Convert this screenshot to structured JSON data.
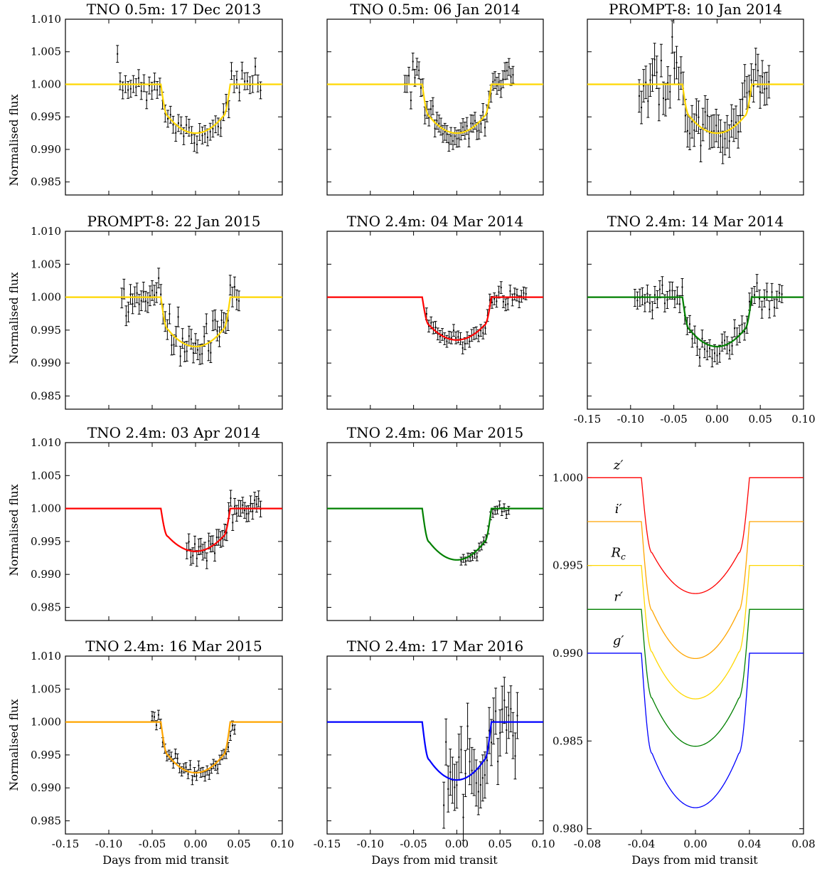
{
  "figure": {
    "ylabel": "Normalised flux",
    "xlabel": "Days from mid transit",
    "colors": {
      "yellow": "#ffd700",
      "red": "#ff0000",
      "green": "#008000",
      "orange": "#ffa500",
      "blue": "#0000ff",
      "errorbar": "#000000"
    }
  },
  "chart_data": [
    {
      "id": "p1",
      "type": "scatter",
      "title": "TNO 0.5m: 17 Dec 2013",
      "model_color": "yellow",
      "model_depth": 0.0075,
      "xlim": [
        -0.15,
        0.1
      ],
      "ylim": [
        0.983,
        1.01
      ],
      "yticks": [
        "1.010",
        "1.005",
        "1.000",
        "0.995",
        "0.990",
        "0.985"
      ],
      "xticks": [],
      "data_range": [
        -0.09,
        0.075
      ],
      "n_points": 55,
      "noise": 0.0012,
      "errorbar": 0.0013
    },
    {
      "id": "p2",
      "type": "scatter",
      "title": "TNO 0.5m: 06 Jan 2014",
      "model_color": "yellow",
      "model_depth": 0.0075,
      "xlim": [
        -0.15,
        0.1
      ],
      "ylim": [
        0.983,
        1.01
      ],
      "yticks": [],
      "xticks": [],
      "data_range": [
        -0.06,
        0.065
      ],
      "n_points": 55,
      "noise": 0.0012,
      "errorbar": 0.0013
    },
    {
      "id": "p3",
      "type": "scatter",
      "title": "PROMPT-8: 10 Jan 2014",
      "model_color": "yellow",
      "model_depth": 0.0075,
      "xlim": [
        -0.15,
        0.1
      ],
      "ylim": [
        0.983,
        1.01
      ],
      "yticks": [],
      "xticks": [],
      "data_range": [
        -0.09,
        0.06
      ],
      "n_points": 60,
      "noise": 0.0022,
      "errorbar": 0.0025
    },
    {
      "id": "p4",
      "type": "scatter",
      "title": "PROMPT-8: 22 Jan 2015",
      "model_color": "yellow",
      "model_depth": 0.0075,
      "xlim": [
        -0.15,
        0.1
      ],
      "ylim": [
        0.983,
        1.01
      ],
      "yticks": [
        "1.010",
        "1.005",
        "1.000",
        "0.995",
        "0.990",
        "0.985"
      ],
      "xticks": [],
      "data_range": [
        -0.085,
        0.05
      ],
      "n_points": 55,
      "noise": 0.0015,
      "errorbar": 0.0015
    },
    {
      "id": "p5",
      "type": "scatter",
      "title": "TNO 2.4m: 04 Mar 2014",
      "model_color": "red",
      "model_depth": 0.0065,
      "xlim": [
        -0.15,
        0.1
      ],
      "ylim": [
        0.983,
        1.01
      ],
      "yticks": [],
      "xticks": [],
      "data_range": [
        -0.035,
        0.08
      ],
      "n_points": 45,
      "noise": 0.0008,
      "errorbar": 0.0009
    },
    {
      "id": "p6",
      "type": "scatter",
      "title": "TNO 2.4m: 14 Mar 2014",
      "model_color": "green",
      "model_depth": 0.0075,
      "xlim": [
        -0.15,
        0.1
      ],
      "ylim": [
        0.983,
        1.01
      ],
      "yticks": [],
      "xticks": [
        "-0.15",
        "-0.10",
        "-0.05",
        "0.00",
        "0.05",
        "0.10"
      ],
      "data_range": [
        -0.095,
        0.075
      ],
      "n_points": 60,
      "noise": 0.0012,
      "errorbar": 0.0013
    },
    {
      "id": "p7",
      "type": "scatter",
      "title": "TNO 2.4m: 03 Apr 2014",
      "model_color": "red",
      "model_depth": 0.0065,
      "xlim": [
        -0.15,
        0.1
      ],
      "ylim": [
        0.983,
        1.01
      ],
      "yticks": [
        "1.010",
        "1.005",
        "1.000",
        "0.995",
        "0.990",
        "0.985"
      ],
      "xticks": [],
      "data_range": [
        -0.01,
        0.075
      ],
      "n_points": 38,
      "noise": 0.0009,
      "errorbar": 0.0012
    },
    {
      "id": "p8",
      "type": "scatter",
      "title": "TNO 2.4m: 06 Mar 2015",
      "model_color": "green",
      "model_depth": 0.0078,
      "xlim": [
        -0.15,
        0.1
      ],
      "ylim": [
        0.983,
        1.01
      ],
      "yticks": [],
      "xticks": [],
      "data_range": [
        0.005,
        0.06
      ],
      "n_points": 22,
      "noise": 0.0004,
      "errorbar": 0.0006
    },
    {
      "id": "p10",
      "type": "scatter",
      "title": "TNO 2.4m: 16 Mar 2015",
      "model_color": "orange",
      "model_depth": 0.0077,
      "xlim": [
        -0.15,
        0.1
      ],
      "ylim": [
        0.983,
        1.01
      ],
      "yticks": [
        "1.010",
        "1.005",
        "1.000",
        "0.995",
        "0.990",
        "0.985"
      ],
      "xticks": [
        "-0.15",
        "-0.10",
        "-0.05",
        "0.00",
        "0.05",
        "0.10"
      ],
      "data_range": [
        -0.05,
        0.045
      ],
      "n_points": 40,
      "noise": 0.0006,
      "errorbar": 0.0007
    },
    {
      "id": "p11",
      "type": "scatter",
      "title": "TNO 2.4m: 17 Mar 2016",
      "model_color": "blue",
      "model_depth": 0.0088,
      "xlim": [
        -0.15,
        0.1
      ],
      "ylim": [
        0.983,
        1.01
      ],
      "yticks": [],
      "xticks": [
        "-0.15",
        "-0.10",
        "-0.05",
        "0.00",
        "0.05",
        "0.10"
      ],
      "data_range": [
        -0.015,
        0.07
      ],
      "n_points": 35,
      "noise": 0.0025,
      "errorbar": 0.0035
    },
    {
      "id": "p9",
      "type": "line",
      "title": "",
      "xlim": [
        -0.08,
        0.08
      ],
      "ylim": [
        0.9797,
        1.002
      ],
      "yticks": [
        "1.000",
        "0.995",
        "0.990",
        "0.985",
        "0.980"
      ],
      "xticks": [
        "-0.08",
        "-0.04",
        "0.00",
        "0.04",
        "0.08"
      ],
      "series": [
        {
          "name": "z′",
          "color": "red",
          "baseline": 1.0,
          "min": 0.9934
        },
        {
          "name": "i′",
          "color": "orange",
          "baseline": 0.9975,
          "min": 0.9897
        },
        {
          "name": "R",
          "subscript": "c",
          "color": "yellow",
          "baseline": 0.995,
          "min": 0.9874
        },
        {
          "name": "r′",
          "color": "green",
          "baseline": 0.9925,
          "min": 0.9847
        },
        {
          "name": "g′",
          "color": "blue",
          "baseline": 0.99,
          "min": 0.9812
        }
      ]
    }
  ]
}
